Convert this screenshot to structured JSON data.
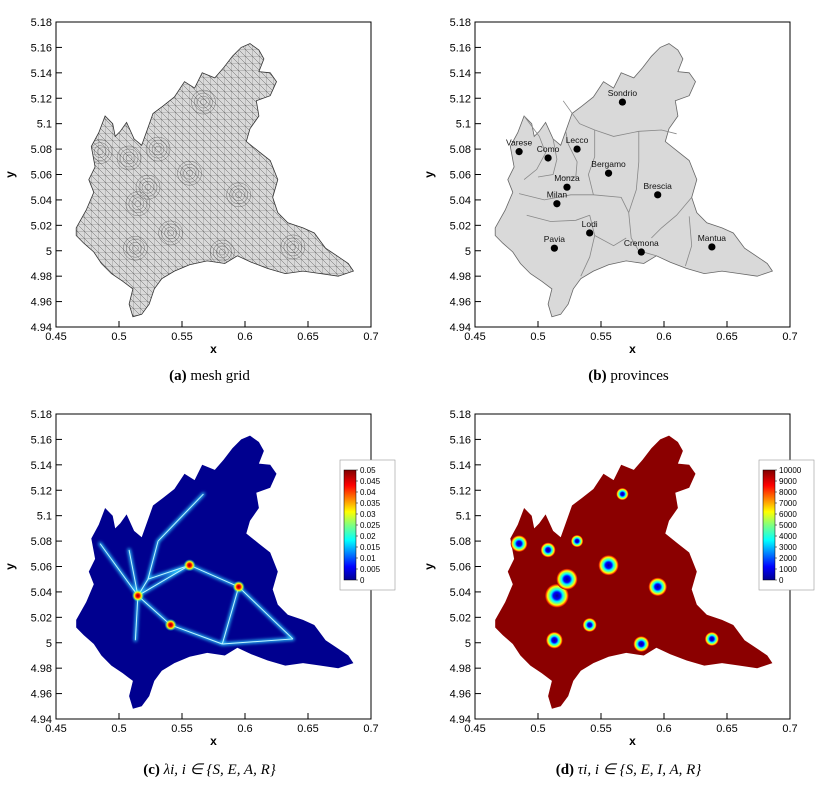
{
  "chart_data": [
    {
      "type": "map",
      "panel": "a",
      "caption_tag": "(a)",
      "caption_text": "mesh grid",
      "xlabel": "x",
      "ylabel": "y",
      "xlim": [
        0.45,
        0.7
      ],
      "ylim": [
        4.94,
        5.18
      ],
      "xticks": [
        "0.45",
        "0.5",
        "0.55",
        "0.6",
        "0.65",
        "0.7"
      ],
      "yticks": [
        "4.94",
        "4.96",
        "4.98",
        "5",
        "5.02",
        "5.04",
        "5.06",
        "5.08",
        "5.1",
        "5.12",
        "5.14",
        "5.16",
        "5.18"
      ],
      "fill": "#d9d9d9",
      "mesh": true
    },
    {
      "type": "map",
      "panel": "b",
      "caption_tag": "(b)",
      "caption_text": "provinces",
      "xlabel": "x",
      "ylabel": "y",
      "xlim": [
        0.45,
        0.7
      ],
      "ylim": [
        4.94,
        5.18
      ],
      "xticks": [
        "0.45",
        "0.5",
        "0.55",
        "0.6",
        "0.65",
        "0.7"
      ],
      "yticks": [
        "4.94",
        "4.96",
        "4.98",
        "5",
        "5.02",
        "5.04",
        "5.06",
        "5.08",
        "5.1",
        "5.12",
        "5.14",
        "5.16",
        "5.18"
      ],
      "fill": "#d9d9d9",
      "points": [
        {
          "name": "Sondrio",
          "x": 0.567,
          "y": 5.117
        },
        {
          "name": "Lecco",
          "x": 0.531,
          "y": 5.08
        },
        {
          "name": "Varese",
          "x": 0.485,
          "y": 5.078
        },
        {
          "name": "Como",
          "x": 0.508,
          "y": 5.073
        },
        {
          "name": "Bergamo",
          "x": 0.556,
          "y": 5.061
        },
        {
          "name": "Monza",
          "x": 0.523,
          "y": 5.05
        },
        {
          "name": "Brescia",
          "x": 0.595,
          "y": 5.044
        },
        {
          "name": "Milan",
          "x": 0.515,
          "y": 5.037
        },
        {
          "name": "Lodi",
          "x": 0.541,
          "y": 5.014
        },
        {
          "name": "Mantua",
          "x": 0.638,
          "y": 5.003
        },
        {
          "name": "Pavia",
          "x": 0.513,
          "y": 5.002
        },
        {
          "name": "Cremona",
          "x": 0.582,
          "y": 4.999
        }
      ]
    },
    {
      "type": "heatmap",
      "panel": "c",
      "caption_tag": "(c)",
      "caption_text": "λi, i ∈ {S, E, A, R}",
      "xlabel": "x",
      "ylabel": "y",
      "xlim": [
        0.45,
        0.7
      ],
      "ylim": [
        4.94,
        5.18
      ],
      "xticks": [
        "0.45",
        "0.5",
        "0.55",
        "0.6",
        "0.65",
        "0.7"
      ],
      "yticks": [
        "4.94",
        "4.96",
        "4.98",
        "5",
        "5.02",
        "5.04",
        "5.06",
        "5.08",
        "5.1",
        "5.12",
        "5.14",
        "5.16",
        "5.18"
      ],
      "background_color": "#00008f",
      "colorbar": {
        "labels": [
          "0.05",
          "0.045",
          "0.04",
          "0.035",
          "0.03",
          "0.025",
          "0.02",
          "0.015",
          "0.01",
          "0.005",
          "0"
        ]
      },
      "edges": [
        [
          "Milan",
          "Monza"
        ],
        [
          "Milan",
          "Como"
        ],
        [
          "Milan",
          "Varese"
        ],
        [
          "Milan",
          "Pavia"
        ],
        [
          "Milan",
          "Lodi"
        ],
        [
          "Milan",
          "Bergamo"
        ],
        [
          "Monza",
          "Lecco"
        ],
        [
          "Lecco",
          "Sondrio"
        ],
        [
          "Bergamo",
          "Brescia"
        ],
        [
          "Brescia",
          "Mantua"
        ],
        [
          "Brescia",
          "Cremona"
        ],
        [
          "Lodi",
          "Cremona"
        ],
        [
          "Cremona",
          "Mantua"
        ],
        [
          "Monza",
          "Bergamo"
        ]
      ],
      "hotspots": [
        {
          "name": "Milan",
          "level": "0.05"
        },
        {
          "name": "Brescia",
          "level": "0.045"
        },
        {
          "name": "Bergamo",
          "level": "0.04"
        },
        {
          "name": "Lodi",
          "level": "0.035"
        }
      ]
    },
    {
      "type": "heatmap",
      "panel": "d",
      "caption_tag": "(d)",
      "caption_text": "τi, i ∈ {S, E, I, A, R}",
      "xlabel": "x",
      "ylabel": "y",
      "xlim": [
        0.45,
        0.7
      ],
      "ylim": [
        4.94,
        5.18
      ],
      "xticks": [
        "0.45",
        "0.5",
        "0.55",
        "0.6",
        "0.65",
        "0.7"
      ],
      "yticks": [
        "4.94",
        "4.96",
        "4.98",
        "5",
        "5.02",
        "5.04",
        "5.06",
        "5.08",
        "5.1",
        "5.12",
        "5.14",
        "5.16",
        "5.18"
      ],
      "background_color": "#8b0000",
      "colorbar": {
        "labels": [
          "10000",
          "9000",
          "8000",
          "7000",
          "6000",
          "5000",
          "4000",
          "3000",
          "2000",
          "1000",
          "0"
        ]
      },
      "wells": [
        {
          "name": "Milan",
          "strength": 1.0
        },
        {
          "name": "Monza",
          "strength": 0.85
        },
        {
          "name": "Bergamo",
          "strength": 0.8
        },
        {
          "name": "Brescia",
          "strength": 0.7
        },
        {
          "name": "Varese",
          "strength": 0.6
        },
        {
          "name": "Pavia",
          "strength": 0.6
        },
        {
          "name": "Cremona",
          "strength": 0.55
        },
        {
          "name": "Como",
          "strength": 0.5
        },
        {
          "name": "Lodi",
          "strength": 0.45
        },
        {
          "name": "Mantua",
          "strength": 0.45
        },
        {
          "name": "Lecco",
          "strength": 0.35
        },
        {
          "name": "Sondrio",
          "strength": 0.35
        }
      ]
    }
  ]
}
